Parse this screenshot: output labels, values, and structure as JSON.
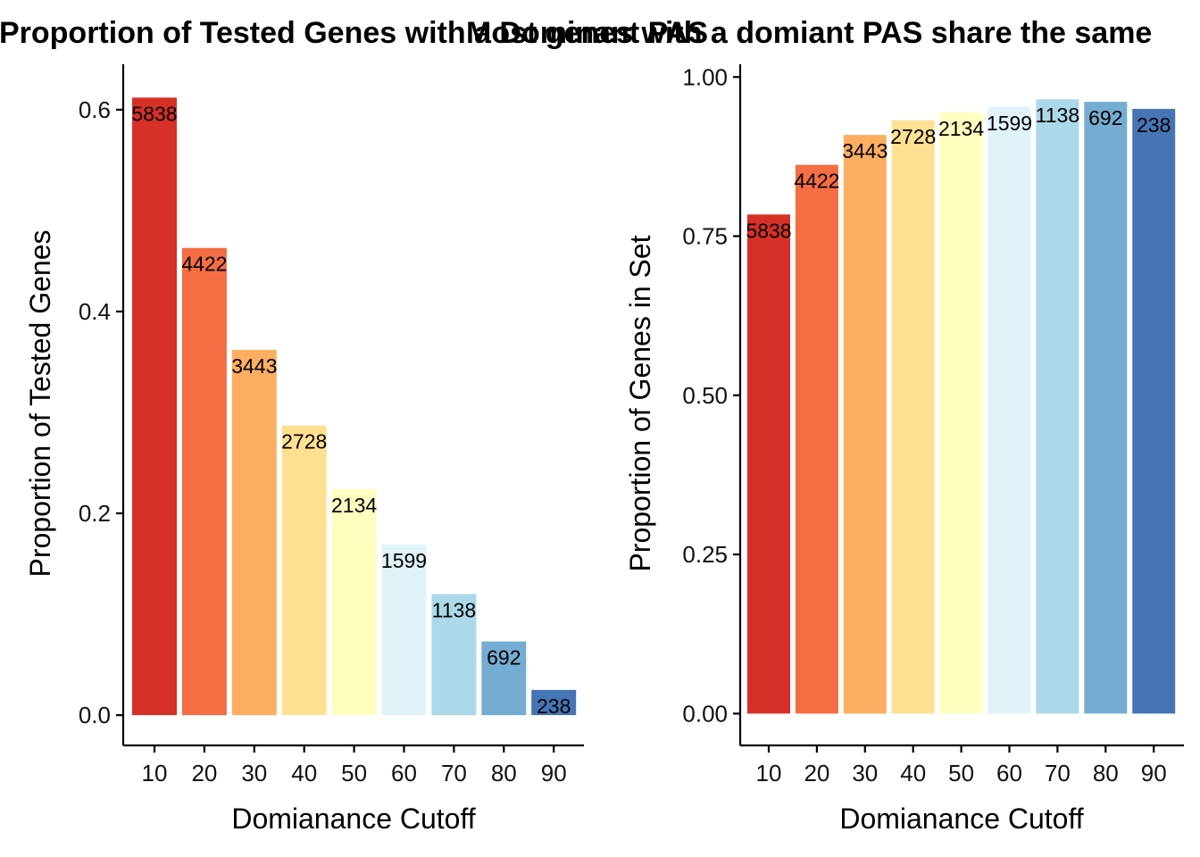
{
  "chart_data": [
    {
      "type": "bar",
      "title": "Proportion of Tested Genes with a Dominant PAS",
      "xlabel": "Domianance Cutoff",
      "ylabel": "Proportion of Tested Genes",
      "categories": [
        "10",
        "20",
        "30",
        "40",
        "50",
        "60",
        "70",
        "80",
        "90"
      ],
      "values": [
        0.612,
        0.463,
        0.362,
        0.287,
        0.224,
        0.169,
        0.12,
        0.073,
        0.025
      ],
      "bar_labels": [
        "5838",
        "4422",
        "3443",
        "2728",
        "2134",
        "1599",
        "1138",
        "692",
        "238"
      ],
      "ylim": [
        -0.03,
        0.645
      ],
      "yticks": [
        0.0,
        0.2,
        0.4,
        0.6
      ],
      "ytick_labels": [
        "0.0",
        "0.2",
        "0.4",
        "0.6"
      ],
      "colors": [
        "#d73027",
        "#f46d43",
        "#fdae61",
        "#fee090",
        "#ffffbf",
        "#e0f3f8",
        "#abd9e9",
        "#74add1",
        "#4575b4"
      ],
      "grid": false,
      "legend": "none"
    },
    {
      "type": "bar",
      "title": "Most genes with a domiant PAS share the same",
      "xlabel": "Domianance Cutoff",
      "ylabel": "Proportion of Genes in Set",
      "categories": [
        "10",
        "20",
        "30",
        "40",
        "50",
        "60",
        "70",
        "80",
        "90"
      ],
      "values": [
        0.784,
        0.862,
        0.909,
        0.932,
        0.944,
        0.953,
        0.965,
        0.961,
        0.95
      ],
      "bar_labels": [
        "5838",
        "4422",
        "3443",
        "2728",
        "2134",
        "1599",
        "1138",
        "692",
        "238"
      ],
      "ylim": [
        -0.05,
        1.02
      ],
      "yticks": [
        0.0,
        0.25,
        0.5,
        0.75,
        1.0
      ],
      "ytick_labels": [
        "0.00",
        "0.25",
        "0.50",
        "0.75",
        "1.00"
      ],
      "colors": [
        "#d73027",
        "#f46d43",
        "#fdae61",
        "#fee090",
        "#ffffbf",
        "#e0f3f8",
        "#abd9e9",
        "#74add1",
        "#4575b4"
      ],
      "grid": false,
      "legend": "none"
    }
  ]
}
